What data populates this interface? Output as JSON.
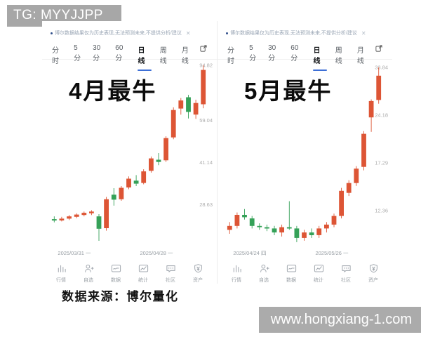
{
  "badges": {
    "tg": "TG: MYYJJPP",
    "site": "www.hongxiang-1.com"
  },
  "source_caption": "数据来源：博尔量化",
  "colors": {
    "up_candle": "#dd5535",
    "down_candle": "#35a158",
    "accent_blue": "#3d6fd6",
    "badge_gray": "#a7a7a7",
    "axis_label_gray": "#adadad"
  },
  "panels": [
    {
      "id": "april",
      "overlay_title": "4月最牛",
      "disclaimer": "博尔数据结果仅为历史表现,无法预测未来,不提供分析/建议",
      "close_glyph": "✕",
      "tabs": [
        "分时",
        "5分",
        "30分",
        "60分",
        "日线",
        "周线",
        "月线"
      ],
      "active_tab": "日线",
      "dates": [
        "2025/03/31 一",
        "2025/04/28 一"
      ],
      "nav": [
        "行情",
        "自选",
        "数据",
        "统计",
        "社区",
        "资产"
      ],
      "nav_icons": [
        "bars-icon",
        "person-icon",
        "data-icon",
        "stats-icon",
        "chat-icon",
        "asset-icon"
      ]
    },
    {
      "id": "may",
      "overlay_title": "5月最牛",
      "disclaimer": "博尔数据结果仅为历史表现,无法预测未来,不提供分析/建议",
      "close_glyph": "✕",
      "tabs": [
        "分时",
        "5分",
        "30分",
        "60分",
        "日线",
        "周线",
        "月线"
      ],
      "active_tab": "日线",
      "dates": [
        "2025/04/24 四",
        "2025/05/26 一"
      ],
      "nav": [
        "行情",
        "自选",
        "数据",
        "统计",
        "社区",
        "资产"
      ],
      "nav_icons": [
        "bars-icon",
        "person-icon",
        "data-icon",
        "stats-icon",
        "chat-icon",
        "asset-icon"
      ]
    }
  ],
  "chart_data": [
    {
      "type": "candlestick",
      "title": "4月最牛",
      "x_axis_labels": [
        "2025/03/31 一",
        "2025/04/28 一"
      ],
      "y_axis_labels": [
        94.82,
        59.04,
        41.14,
        28.63
      ],
      "ylim": [
        20.5,
        97
      ],
      "scale": "log",
      "color_convention": "red = close >= open (rise), green = close < open (fall)",
      "candles": [
        {
          "o": 25.3,
          "h": 25.9,
          "l": 24.6,
          "c": 25.0
        },
        {
          "o": 25.0,
          "h": 25.8,
          "l": 24.8,
          "c": 25.4
        },
        {
          "o": 25.4,
          "h": 26.2,
          "l": 25.1,
          "c": 25.9
        },
        {
          "o": 25.8,
          "h": 26.6,
          "l": 25.5,
          "c": 26.3
        },
        {
          "o": 26.2,
          "h": 27.0,
          "l": 25.9,
          "c": 26.7
        },
        {
          "o": 26.6,
          "h": 27.3,
          "l": 26.2,
          "c": 27.0
        },
        {
          "o": 25.9,
          "h": 26.4,
          "l": 21.0,
          "c": 23.3
        },
        {
          "o": 23.4,
          "h": 30.6,
          "l": 22.9,
          "c": 30.0
        },
        {
          "o": 31.2,
          "h": 33.0,
          "l": 28.4,
          "c": 29.9
        },
        {
          "o": 30.0,
          "h": 33.6,
          "l": 29.6,
          "c": 33.1
        },
        {
          "o": 33.2,
          "h": 36.5,
          "l": 32.7,
          "c": 35.8
        },
        {
          "o": 35.2,
          "h": 36.9,
          "l": 33.6,
          "c": 34.3
        },
        {
          "o": 34.5,
          "h": 38.8,
          "l": 34.1,
          "c": 38.1
        },
        {
          "o": 38.3,
          "h": 43.3,
          "l": 37.7,
          "c": 42.6
        },
        {
          "o": 42.1,
          "h": 44.6,
          "l": 40.2,
          "c": 41.3
        },
        {
          "o": 41.9,
          "h": 51.5,
          "l": 41.3,
          "c": 50.7
        },
        {
          "o": 51.0,
          "h": 66.0,
          "l": 50.2,
          "c": 64.5
        },
        {
          "o": 65.3,
          "h": 71.5,
          "l": 62.0,
          "c": 70.0
        },
        {
          "o": 72.0,
          "h": 73.5,
          "l": 60.0,
          "c": 63.5
        },
        {
          "o": 62.0,
          "h": 70.5,
          "l": 59.8,
          "c": 68.5
        },
        {
          "o": 67.8,
          "h": 94.82,
          "l": 65.5,
          "c": 91.0
        }
      ]
    },
    {
      "type": "candlestick",
      "title": "5月最牛",
      "x_axis_labels": [
        "2025/04/24 四",
        "2025/05/26 一"
      ],
      "y_axis_labels": [
        33.84,
        24.18,
        17.29,
        12.36
      ],
      "ylim": [
        9.8,
        35
      ],
      "scale": "log",
      "color_convention": "red = close >= open (rise), green = close < open (fall)",
      "candles": [
        {
          "o": 10.8,
          "h": 11.4,
          "l": 10.5,
          "c": 11.1
        },
        {
          "o": 11.1,
          "h": 12.2,
          "l": 10.9,
          "c": 12.0
        },
        {
          "o": 12.0,
          "h": 12.5,
          "l": 11.6,
          "c": 11.8
        },
        {
          "o": 11.7,
          "h": 11.9,
          "l": 10.9,
          "c": 11.1
        },
        {
          "o": 11.1,
          "h": 11.3,
          "l": 10.8,
          "c": 11.0
        },
        {
          "o": 11.0,
          "h": 11.2,
          "l": 10.7,
          "c": 10.9
        },
        {
          "o": 10.9,
          "h": 11.1,
          "l": 10.4,
          "c": 10.6
        },
        {
          "o": 10.6,
          "h": 11.2,
          "l": 10.3,
          "c": 11.0
        },
        {
          "o": 11.0,
          "h": 13.2,
          "l": 10.8,
          "c": 10.9
        },
        {
          "o": 10.9,
          "h": 11.1,
          "l": 9.9,
          "c": 10.2
        },
        {
          "o": 10.2,
          "h": 10.8,
          "l": 10.0,
          "c": 10.6
        },
        {
          "o": 10.6,
          "h": 10.9,
          "l": 10.2,
          "c": 10.4
        },
        {
          "o": 10.4,
          "h": 11.1,
          "l": 10.2,
          "c": 10.9
        },
        {
          "o": 10.9,
          "h": 11.4,
          "l": 10.6,
          "c": 11.2
        },
        {
          "o": 11.2,
          "h": 12.1,
          "l": 11.0,
          "c": 11.9
        },
        {
          "o": 11.9,
          "h": 14.5,
          "l": 11.7,
          "c": 14.2
        },
        {
          "o": 14.0,
          "h": 15.3,
          "l": 13.7,
          "c": 15.0
        },
        {
          "o": 15.0,
          "h": 16.9,
          "l": 14.7,
          "c": 16.6
        },
        {
          "o": 16.8,
          "h": 21.6,
          "l": 16.4,
          "c": 21.2
        },
        {
          "o": 23.8,
          "h": 27.0,
          "l": 21.5,
          "c": 26.7
        },
        {
          "o": 26.9,
          "h": 33.84,
          "l": 26.2,
          "c": 31.9
        }
      ]
    }
  ]
}
